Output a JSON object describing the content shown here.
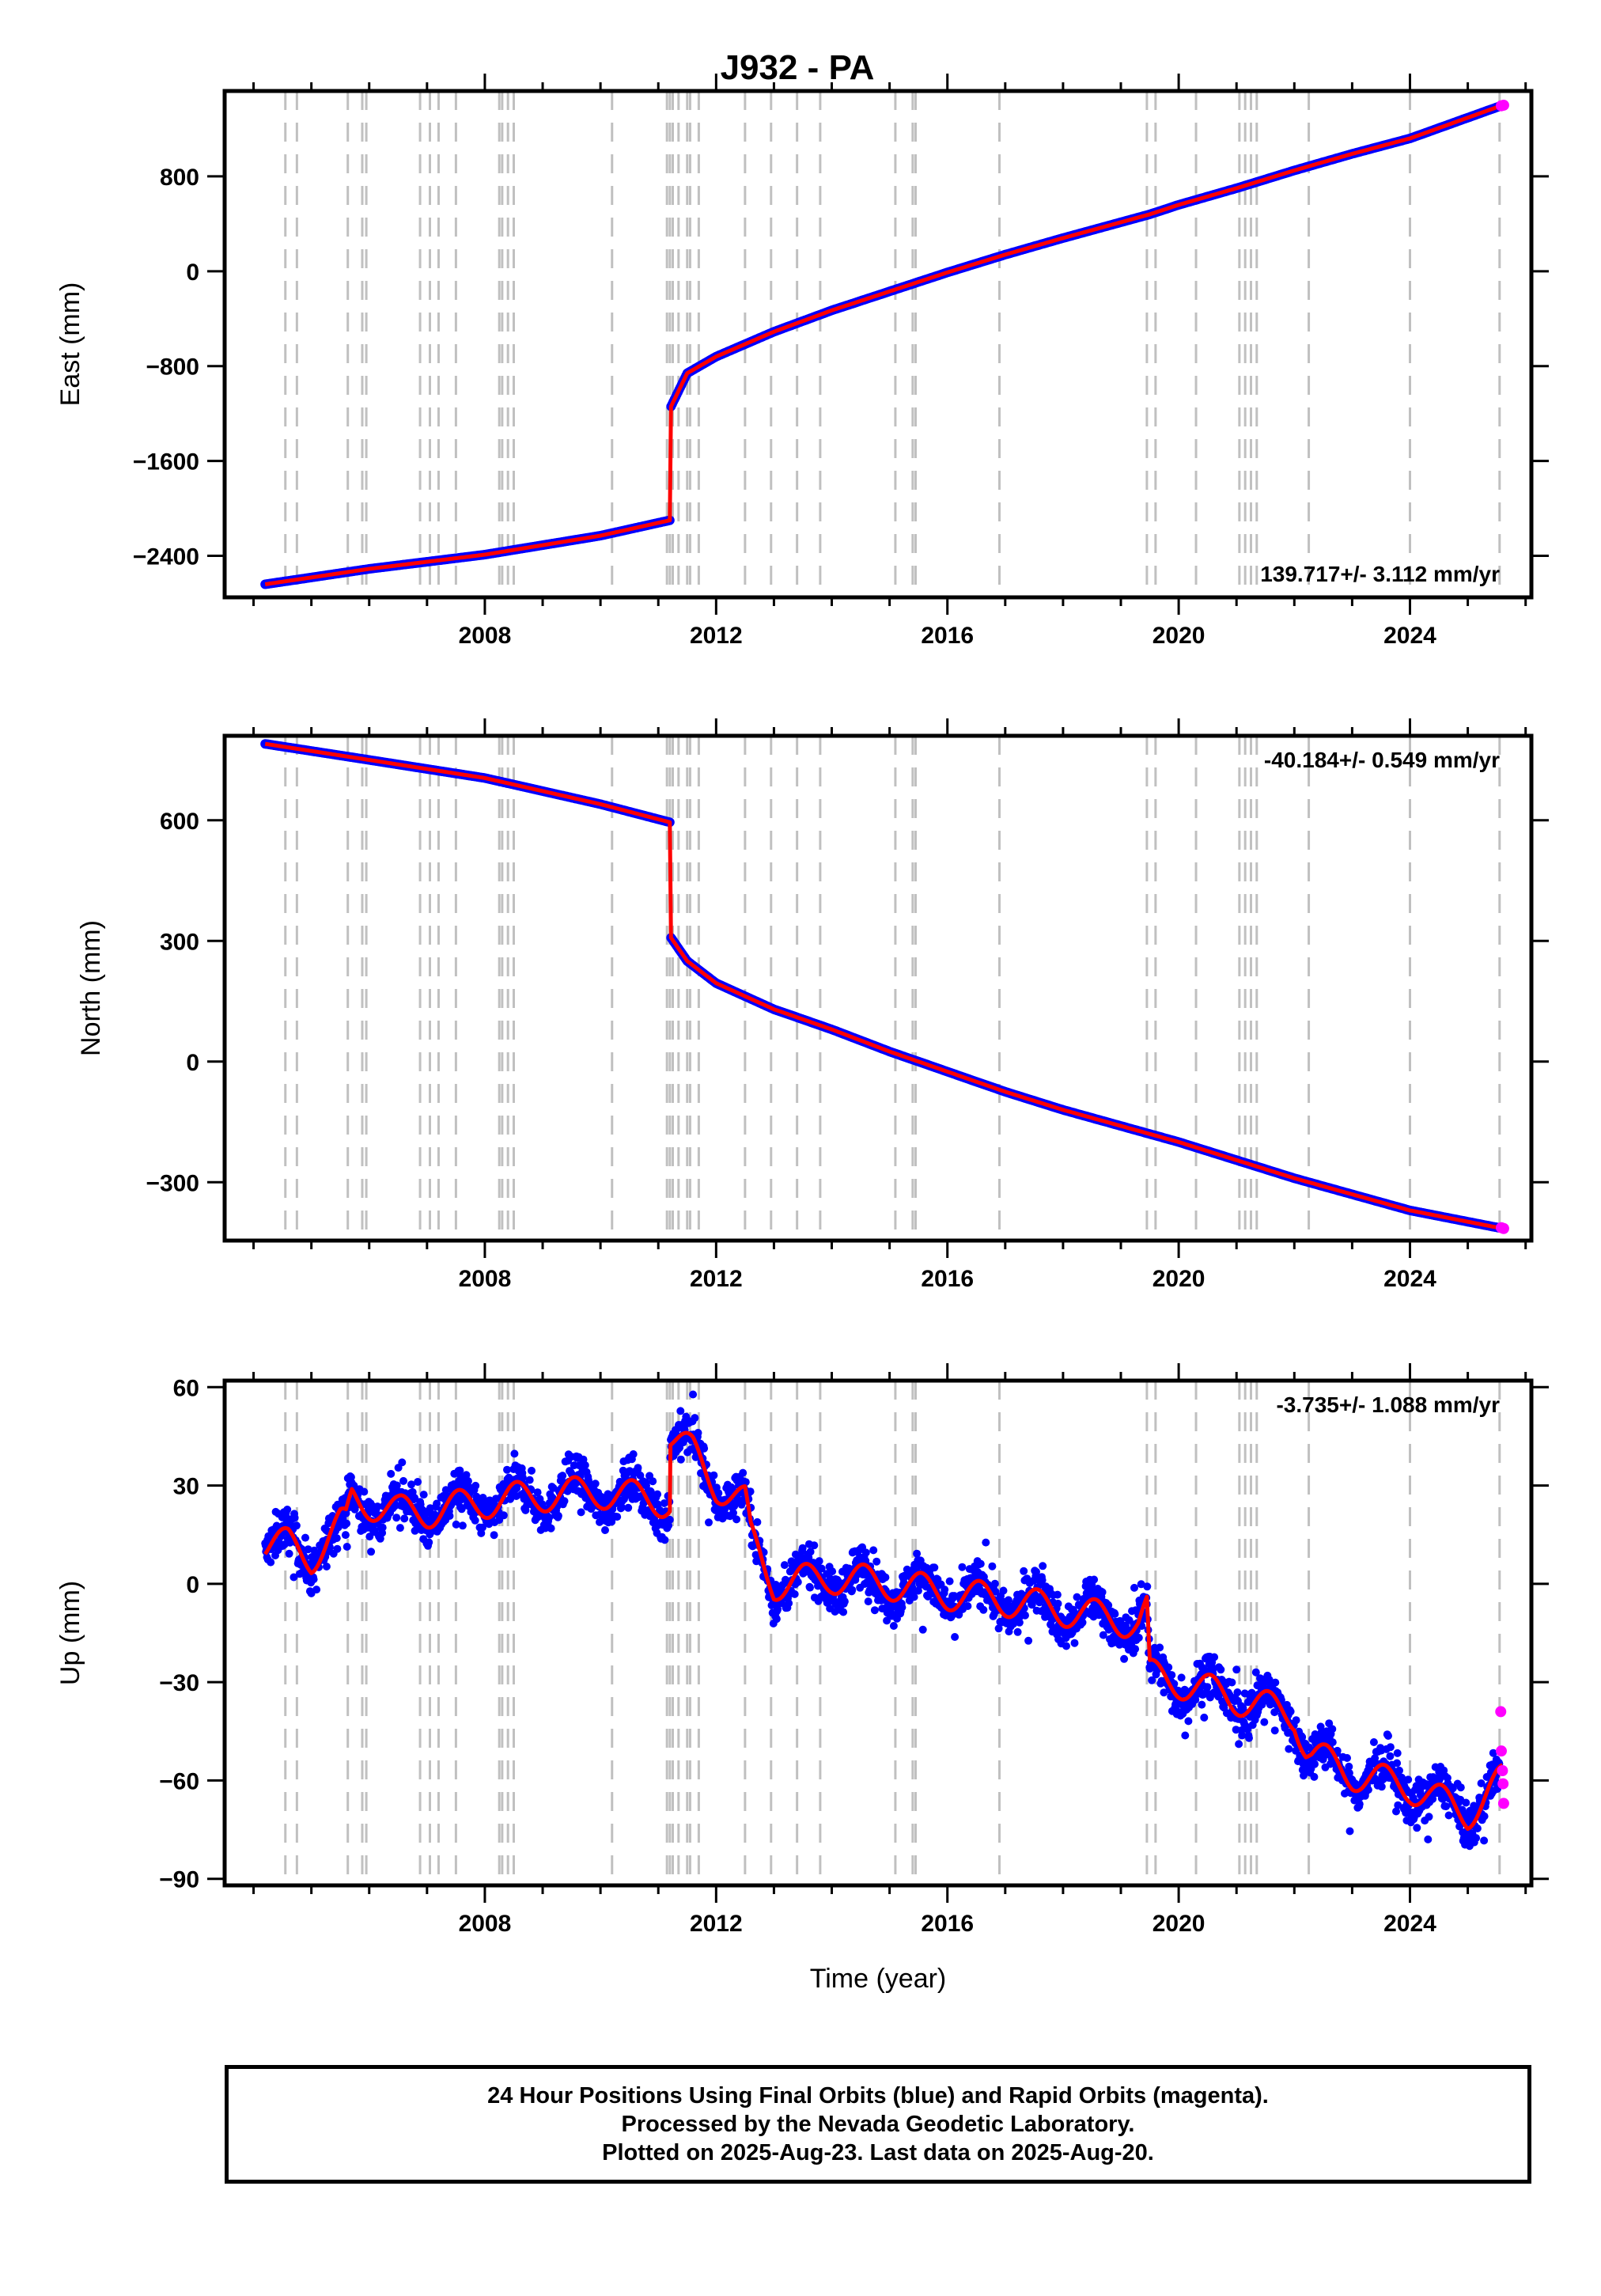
{
  "chart_data": {
    "title": "J932 - PA",
    "xlabel": "Time (year)",
    "xlim": [
      2003.5,
      2026.1
    ],
    "xticks": [
      2008,
      2012,
      2016,
      2020,
      2024
    ],
    "grid": false,
    "legend": "none",
    "colors": {
      "final": "#0000ff",
      "rapid": "#ff00ff",
      "model": "#ff0000",
      "event": "#c0c0c0"
    },
    "event_lines": [
      2004.55,
      2004.75,
      2005.63,
      2005.88,
      2005.95,
      2006.88,
      2007.05,
      2007.2,
      2007.5,
      2008.25,
      2008.3,
      2008.4,
      2008.5,
      2010.2,
      2011.15,
      2011.2,
      2011.25,
      2011.35,
      2011.5,
      2011.55,
      2011.7,
      2012.5,
      2012.95,
      2013.4,
      2013.8,
      2015.1,
      2015.4,
      2015.45,
      2016.9,
      2019.45,
      2019.6,
      2020.3,
      2021.05,
      2021.15,
      2021.25,
      2021.35,
      2022.25,
      2024.0,
      2025.55
    ],
    "panels": [
      {
        "type": "scatter",
        "ylabel": "East (mm)",
        "ylim": [
          -2750,
          1520
        ],
        "yticks": [
          800,
          0,
          -800,
          -1600,
          -2400
        ],
        "rate": "139.717+/- 3.112 mm/yr",
        "rate_pos": "bottom-right",
        "x": [
          2004.2,
          2006.0,
          2008.0,
          2010.0,
          2011.2,
          2011.21,
          2011.5,
          2012.0,
          2013.0,
          2014.0,
          2015.0,
          2016.0,
          2017.0,
          2018.0,
          2019.5,
          2020.0,
          2021.0,
          2022.0,
          2023.0,
          2024.0,
          2025.6
        ],
        "y": [
          -2640,
          -2510,
          -2390,
          -2230,
          -2100,
          -1150,
          -860,
          -720,
          -510,
          -330,
          -170,
          -10,
          140,
          280,
          480,
          560,
          700,
          850,
          990,
          1120,
          1400
        ],
        "rapid": {
          "x": [
            2025.58,
            2025.62
          ],
          "y": [
            1395,
            1400
          ]
        }
      },
      {
        "type": "scatter",
        "ylabel": "North (mm)",
        "ylim": [
          -445,
          810
        ],
        "yticks": [
          600,
          300,
          0,
          -300
        ],
        "rate": "-40.184+/- 0.549 mm/yr",
        "rate_pos": "top-right",
        "x": [
          2004.2,
          2006.0,
          2008.0,
          2010.0,
          2011.2,
          2011.21,
          2011.5,
          2012.0,
          2013.0,
          2014.0,
          2015.0,
          2016.0,
          2017.0,
          2018.0,
          2019.0,
          2020.0,
          2021.0,
          2022.0,
          2023.0,
          2024.0,
          2025.6
        ],
        "y": [
          790,
          750,
          705,
          640,
          595,
          310,
          250,
          195,
          130,
          80,
          25,
          -25,
          -75,
          -120,
          -160,
          -200,
          -245,
          -290,
          -330,
          -370,
          -415
        ],
        "rapid": {
          "x": [
            2025.58,
            2025.62
          ],
          "y": [
            -413,
            -415
          ]
        }
      },
      {
        "type": "scatter",
        "ylabel": "Up (mm)",
        "ylim": [
          -92,
          62
        ],
        "yticks": [
          60,
          30,
          0,
          -30,
          -60,
          -90
        ],
        "rate": "-3.735+/- 1.088 mm/yr",
        "rate_pos": "top-right",
        "x": [
          2004.2,
          2004.6,
          2005.0,
          2005.5,
          2005.6,
          2005.7,
          2006.5,
          2007.0,
          2008.0,
          2009.0,
          2010.0,
          2011.2,
          2011.21,
          2011.6,
          2012.0,
          2012.5,
          2012.6,
          2013.0,
          2014.0,
          2015.0,
          2016.0,
          2017.0,
          2018.0,
          2019.3,
          2019.45,
          2019.5,
          2020.0,
          2021.0,
          2022.0,
          2022.2,
          2022.3,
          2023.0,
          2024.0,
          2025.0,
          2025.6
        ],
        "y": [
          12,
          12,
          8,
          18,
          18,
          26,
          22,
          22,
          25,
          27,
          28,
          25,
          45,
          40,
          30,
          25,
          14,
          0,
          2,
          0,
          -3,
          -5,
          -8,
          -12,
          -8,
          -28,
          -30,
          -35,
          -40,
          -50,
          -52,
          -58,
          -62,
          -70,
          -60
        ],
        "seasonal_amp": 5,
        "scatter_mm": 6,
        "outlier_mm": 14,
        "rapid": {
          "x": [
            2025.57,
            2025.58,
            2025.6,
            2025.61,
            2025.62
          ],
          "y": [
            -39,
            -51,
            -57,
            -61,
            -67
          ]
        }
      }
    ]
  },
  "footer": {
    "line1": "24 Hour Positions Using Final Orbits (blue) and Rapid Orbits (magenta).",
    "line2": "Processed by the Nevada Geodetic Laboratory.",
    "line3": "Plotted on 2025-Aug-23. Last data on 2025-Aug-20."
  }
}
